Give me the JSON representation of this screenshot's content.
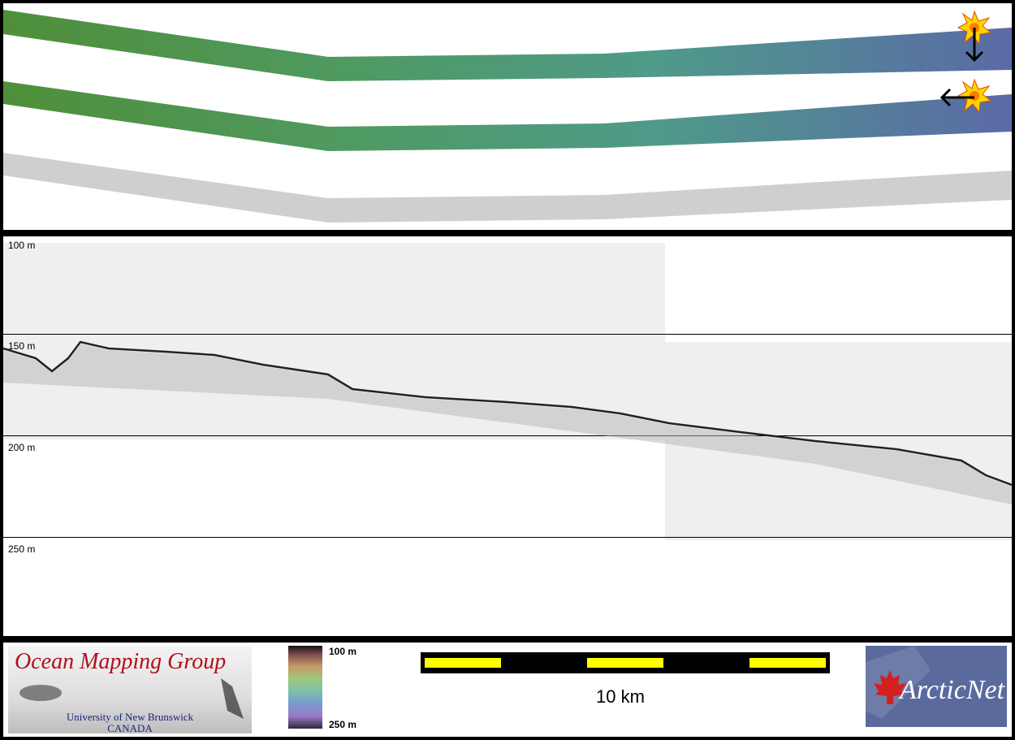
{
  "profile": {
    "depth_labels": [
      "100 m",
      "150 m",
      "200 m",
      "250 m"
    ]
  },
  "legend": {
    "top_label": "100 m",
    "bottom_label": "250 m",
    "colormap": [
      "#111111",
      "#7a4a4a",
      "#c89a6a",
      "#9cc77c",
      "#7cc0a8",
      "#7a9ad0",
      "#9a7ac8",
      "#2a2a3a"
    ]
  },
  "scalebar": {
    "label": "10 km",
    "bar_color": "#000000",
    "segment_color": "#ffff00"
  },
  "logos": {
    "omg": {
      "title": "Ocean Mapping Group",
      "line1": "University of New Brunswick",
      "line2": "CANADA",
      "title_color": "#b0101a",
      "text_color": "#1a237e"
    },
    "arcticnet": {
      "name": "ArcticNet"
    }
  },
  "swaths": {
    "illumination_markers": [
      "sun-icon",
      "sun-icon"
    ],
    "arrows": [
      "arrow-down-icon",
      "arrow-left-icon"
    ]
  }
}
